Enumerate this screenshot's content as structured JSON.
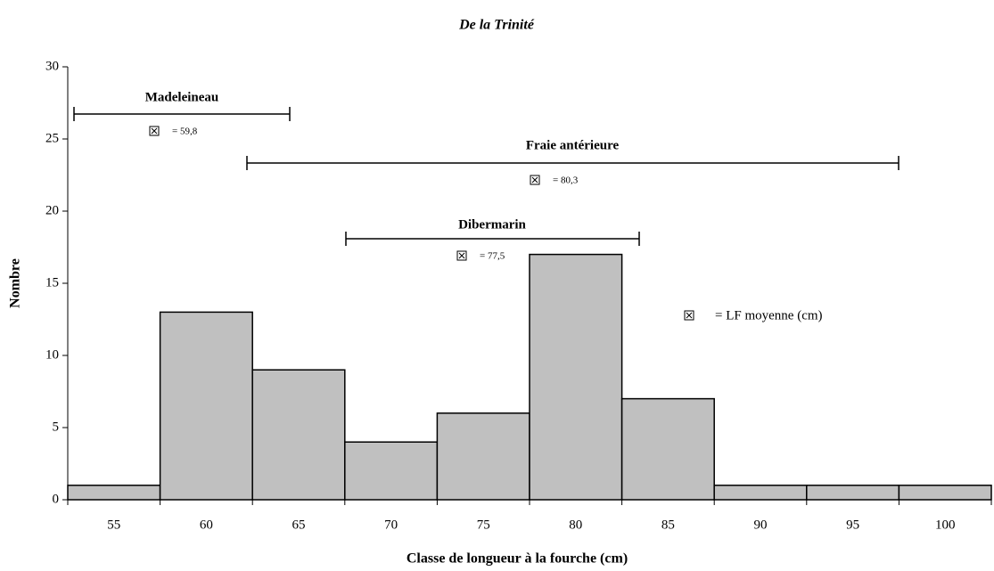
{
  "chart_data": {
    "type": "bar",
    "title": "De la Trinité",
    "x_label": "Classe de longueur à la fourche (cm)",
    "y_label": "Nombre",
    "categories": [
      "55",
      "60",
      "65",
      "70",
      "75",
      "80",
      "85",
      "90",
      "95",
      "100"
    ],
    "values": [
      1,
      13,
      9,
      4,
      6,
      17,
      7,
      1,
      1,
      1
    ],
    "color": "#c0c0c0",
    "ylim": [
      0,
      30
    ],
    "yticks": [
      0,
      5,
      10,
      15,
      20,
      25,
      30
    ],
    "annotations": [
      {
        "label": "Madeleineau",
        "mean_label": "= 59,8"
      },
      {
        "label": "Fraie antérieure",
        "mean_label": "= 80,3"
      },
      {
        "label": "Dibermarin",
        "mean_label": "= 77,5"
      }
    ],
    "legend_label": "= LF moyenne (cm)"
  }
}
